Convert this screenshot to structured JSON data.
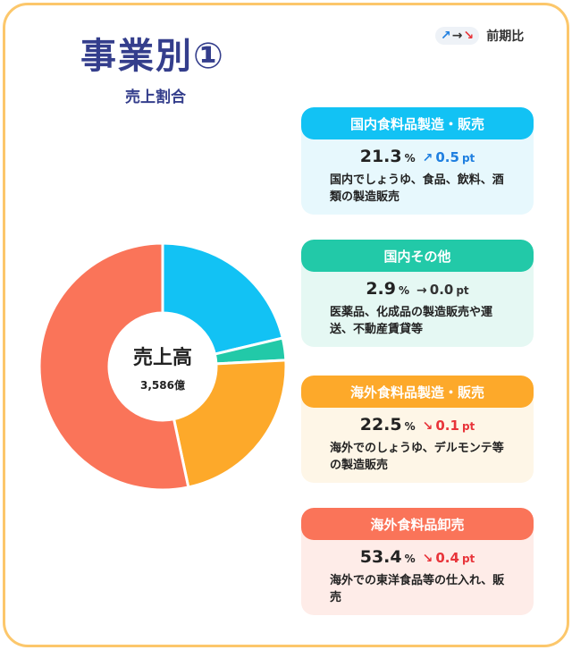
{
  "header": {
    "title": "事業別①",
    "subtitle": "売上割合",
    "legend_label": "前期比",
    "legend_up": "↗",
    "legend_flat": "→",
    "legend_down": "↘"
  },
  "center": {
    "title": "売上高",
    "value": "3,586億"
  },
  "colors": {
    "up": "#1f7fe0",
    "flat": "#333333",
    "down": "#e8343a"
  },
  "chart_data": {
    "type": "pie",
    "donut": true,
    "total_label": "3,586億",
    "series": [
      {
        "name": "国内食料品製造・販売",
        "value": 21.3,
        "color": "#12c2f4"
      },
      {
        "name": "国内その他",
        "value": 2.9,
        "color": "#22c9a8"
      },
      {
        "name": "海外食料品製造・販売",
        "value": 22.5,
        "color": "#fda92a"
      },
      {
        "name": "海外食料品卸売",
        "value": 53.4,
        "color": "#fa7459"
      }
    ]
  },
  "cards": [
    {
      "title": "国内食料品製造・販売",
      "pct": "21.3",
      "pct_unit": "%",
      "direction": "up",
      "arrow": "↗",
      "delta": "0.5",
      "delta_unit": "pt",
      "desc": "国内でしょうゆ、食品、飲料、酒類の製造販売",
      "head_color": "#12c2f4",
      "bg_color": "#e7f8fd"
    },
    {
      "title": "国内その他",
      "pct": "2.9",
      "pct_unit": "%",
      "direction": "flat",
      "arrow": "→",
      "delta": "0.0",
      "delta_unit": "pt",
      "desc": "医薬品、化成品の製造販売や運送、不動産賃貸等",
      "head_color": "#22c9a8",
      "bg_color": "#e5f8f3"
    },
    {
      "title": "海外食料品製造・販売",
      "pct": "22.5",
      "pct_unit": "%",
      "direction": "down",
      "arrow": "↘",
      "delta": "0.1",
      "delta_unit": "pt",
      "desc": "海外でのしょうゆ、デルモンテ等の製造販売",
      "head_color": "#fda92a",
      "bg_color": "#fef6e7"
    },
    {
      "title": "海外食料品卸売",
      "pct": "53.4",
      "pct_unit": "%",
      "direction": "down",
      "arrow": "↘",
      "delta": "0.4",
      "delta_unit": "pt",
      "desc": "海外での東洋食品等の仕入れ、販売",
      "head_color": "#fa7459",
      "bg_color": "#feece8"
    }
  ]
}
